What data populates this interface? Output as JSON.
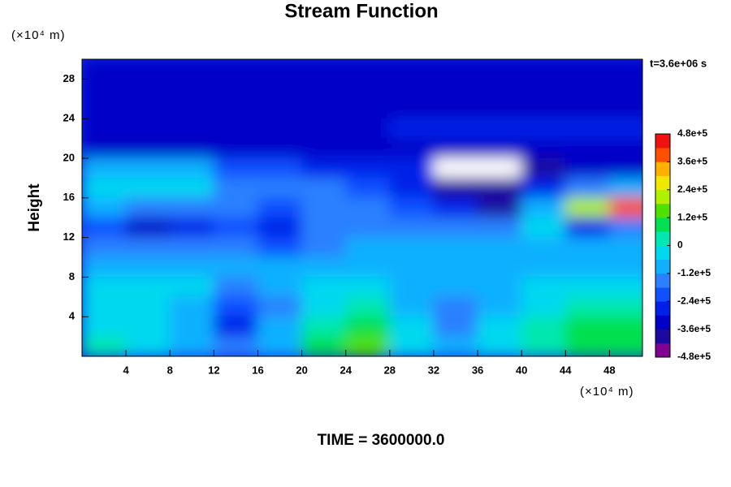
{
  "chart_data": {
    "type": "contour",
    "title": "Stream Function",
    "xunit": "(×10⁴ m)",
    "yunit": "(×10⁴ m)",
    "ylabel": "Height",
    "time_label": "t=3.6e+06 s",
    "footer": "TIME = 3600000.0",
    "xlim": [
      0,
      51
    ],
    "ylim": [
      0,
      30
    ],
    "xticks": [
      4,
      8,
      12,
      16,
      20,
      24,
      28,
      32,
      36,
      40,
      44,
      48
    ],
    "yticks": [
      4,
      8,
      12,
      16,
      20,
      24,
      28
    ],
    "x": [
      2,
      6,
      10,
      14,
      18,
      22,
      26,
      30,
      34,
      38,
      42,
      46,
      50
    ],
    "y": [
      29,
      27,
      25,
      23,
      21,
      19,
      17,
      15,
      13,
      11,
      9,
      7,
      5,
      3,
      1
    ],
    "z": [
      [
        -340000,
        -340000,
        -340000,
        -340000,
        -340000,
        -340000,
        -340000,
        -340000,
        -340000,
        -340000,
        -340000,
        -340000,
        -340000
      ],
      [
        -340000,
        -340000,
        -340000,
        -340000,
        -340000,
        -340000,
        -340000,
        -340000,
        -340000,
        -340000,
        -340000,
        -340000,
        -340000
      ],
      [
        -330000,
        -330000,
        -330000,
        -330000,
        -330000,
        -330000,
        -330000,
        -330000,
        -330000,
        -320000,
        -320000,
        -320000,
        -320000
      ],
      [
        -310000,
        -310000,
        -310000,
        -310000,
        -310000,
        -310000,
        -310000,
        -300000,
        -300000,
        -300000,
        -300000,
        -300000,
        -300000
      ],
      [
        -360000,
        -360000,
        -360000,
        -360000,
        -360000,
        -360000,
        -360000,
        -360000,
        -360000,
        -360000,
        -360000,
        -360000,
        -360000
      ],
      [
        -100000,
        -80000,
        -120000,
        -200000,
        -240000,
        -260000,
        -260000,
        -300000,
        -520000,
        -520000,
        -400000,
        -340000,
        -340000
      ],
      [
        -40000,
        -20000,
        -60000,
        -160000,
        -140000,
        -180000,
        -200000,
        -260000,
        -380000,
        -400000,
        -260000,
        -160000,
        -120000
      ],
      [
        -120000,
        -140000,
        -160000,
        -180000,
        -220000,
        -180000,
        -160000,
        -240000,
        -300000,
        -420000,
        -120000,
        180000,
        380000
      ],
      [
        -240000,
        -340000,
        -300000,
        -220000,
        -260000,
        -180000,
        -160000,
        -180000,
        -180000,
        -160000,
        -60000,
        -260000,
        -140000
      ],
      [
        -140000,
        -160000,
        -160000,
        -140000,
        -240000,
        -140000,
        -120000,
        -120000,
        -120000,
        -100000,
        -80000,
        -120000,
        -120000
      ],
      [
        -100000,
        -100000,
        -100000,
        -100000,
        -120000,
        -100000,
        -100000,
        -100000,
        -100000,
        -100000,
        -100000,
        -100000,
        -100000
      ],
      [
        -60000,
        -40000,
        -60000,
        -140000,
        -120000,
        -60000,
        -60000,
        -100000,
        -100000,
        -80000,
        -60000,
        -60000,
        -60000
      ],
      [
        -40000,
        -40000,
        -120000,
        -220000,
        -140000,
        -20000,
        20000,
        -80000,
        -140000,
        -80000,
        -20000,
        20000,
        0
      ],
      [
        -20000,
        -40000,
        -100000,
        -260000,
        -120000,
        40000,
        100000,
        -40000,
        -140000,
        -60000,
        20000,
        80000,
        80000
      ],
      [
        20000,
        -20000,
        -80000,
        -160000,
        -80000,
        60000,
        120000,
        -20000,
        -100000,
        -20000,
        40000,
        100000,
        100000
      ]
    ],
    "zlim": [
      -480000,
      480000
    ],
    "colors": [
      "#800090",
      "#1a0aa0",
      "#0000c8",
      "#0020e8",
      "#1050ff",
      "#2a80ff",
      "#10b0ff",
      "#00d8f0",
      "#00e8b0",
      "#00e050",
      "#50e000",
      "#b0f000",
      "#f0e800",
      "#ffb000",
      "#ff5000",
      "#f01010"
    ],
    "out_of_range_color": "#ffffff",
    "colorbar_ticks": [
      {
        "value": 480000,
        "label": "4.8e+5"
      },
      {
        "value": 360000,
        "label": "3.6e+5"
      },
      {
        "value": 240000,
        "label": "2.4e+5"
      },
      {
        "value": 120000,
        "label": "1.2e+5"
      },
      0,
      {
        "value": -120000,
        "label": "-1.2e+5"
      },
      {
        "value": -240000,
        "label": "-2.4e+5"
      },
      {
        "value": -360000,
        "label": "-3.6e+5"
      },
      {
        "value": -480000,
        "label": "-4.8e+5"
      }
    ]
  }
}
